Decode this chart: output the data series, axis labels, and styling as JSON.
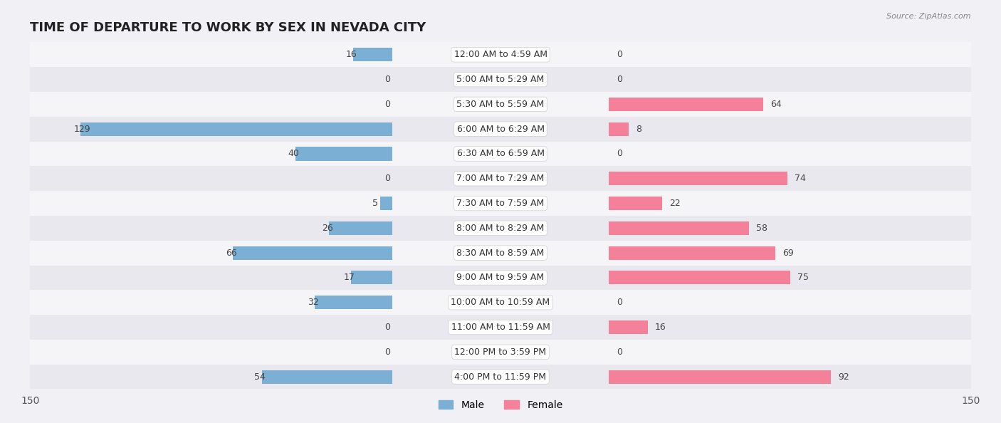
{
  "title": "TIME OF DEPARTURE TO WORK BY SEX IN NEVADA CITY",
  "source": "Source: ZipAtlas.com",
  "categories": [
    "12:00 AM to 4:59 AM",
    "5:00 AM to 5:29 AM",
    "5:30 AM to 5:59 AM",
    "6:00 AM to 6:29 AM",
    "6:30 AM to 6:59 AM",
    "7:00 AM to 7:29 AM",
    "7:30 AM to 7:59 AM",
    "8:00 AM to 8:29 AM",
    "8:30 AM to 8:59 AM",
    "9:00 AM to 9:59 AM",
    "10:00 AM to 10:59 AM",
    "11:00 AM to 11:59 AM",
    "12:00 PM to 3:59 PM",
    "4:00 PM to 11:59 PM"
  ],
  "male": [
    16,
    0,
    0,
    129,
    40,
    0,
    5,
    26,
    66,
    17,
    32,
    0,
    0,
    54
  ],
  "female": [
    0,
    0,
    64,
    8,
    0,
    74,
    22,
    58,
    69,
    75,
    0,
    16,
    0,
    92
  ],
  "male_color": "#7bafd4",
  "female_color": "#f48099",
  "bar_height": 0.55,
  "xlim": 150,
  "bg_color": "#f0f0f5",
  "row_color_light": "#f5f5f8",
  "row_color_dark": "#e8e8ee",
  "title_fontsize": 13,
  "label_fontsize": 9,
  "value_fontsize": 9,
  "tick_fontsize": 10
}
